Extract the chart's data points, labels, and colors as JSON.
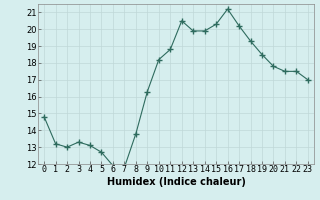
{
  "x": [
    0,
    1,
    2,
    3,
    4,
    5,
    6,
    7,
    8,
    9,
    10,
    11,
    12,
    13,
    14,
    15,
    16,
    17,
    18,
    19,
    20,
    21,
    22,
    23
  ],
  "y": [
    14.8,
    13.2,
    13.0,
    13.3,
    13.1,
    12.7,
    11.9,
    11.8,
    13.8,
    16.3,
    18.2,
    18.8,
    20.5,
    19.9,
    19.9,
    20.3,
    21.2,
    20.2,
    19.3,
    18.5,
    17.8,
    17.5,
    17.5,
    17.0
  ],
  "line_color": "#2e6b5e",
  "marker": "+",
  "marker_size": 4,
  "bg_color": "#d6eeee",
  "grid_color": "#c0d8d8",
  "xlabel": "Humidex (Indice chaleur)",
  "xlabel_fontsize": 7,
  "ylim": [
    12,
    21.5
  ],
  "yticks": [
    12,
    13,
    14,
    15,
    16,
    17,
    18,
    19,
    20,
    21
  ],
  "xtick_labels": [
    "0",
    "1",
    "2",
    "3",
    "4",
    "5",
    "6",
    "7",
    "8",
    "9",
    "10",
    "11",
    "12",
    "13",
    "14",
    "15",
    "16",
    "17",
    "18",
    "19",
    "20",
    "21",
    "22",
    "23"
  ],
  "tick_fontsize": 6,
  "title": ""
}
